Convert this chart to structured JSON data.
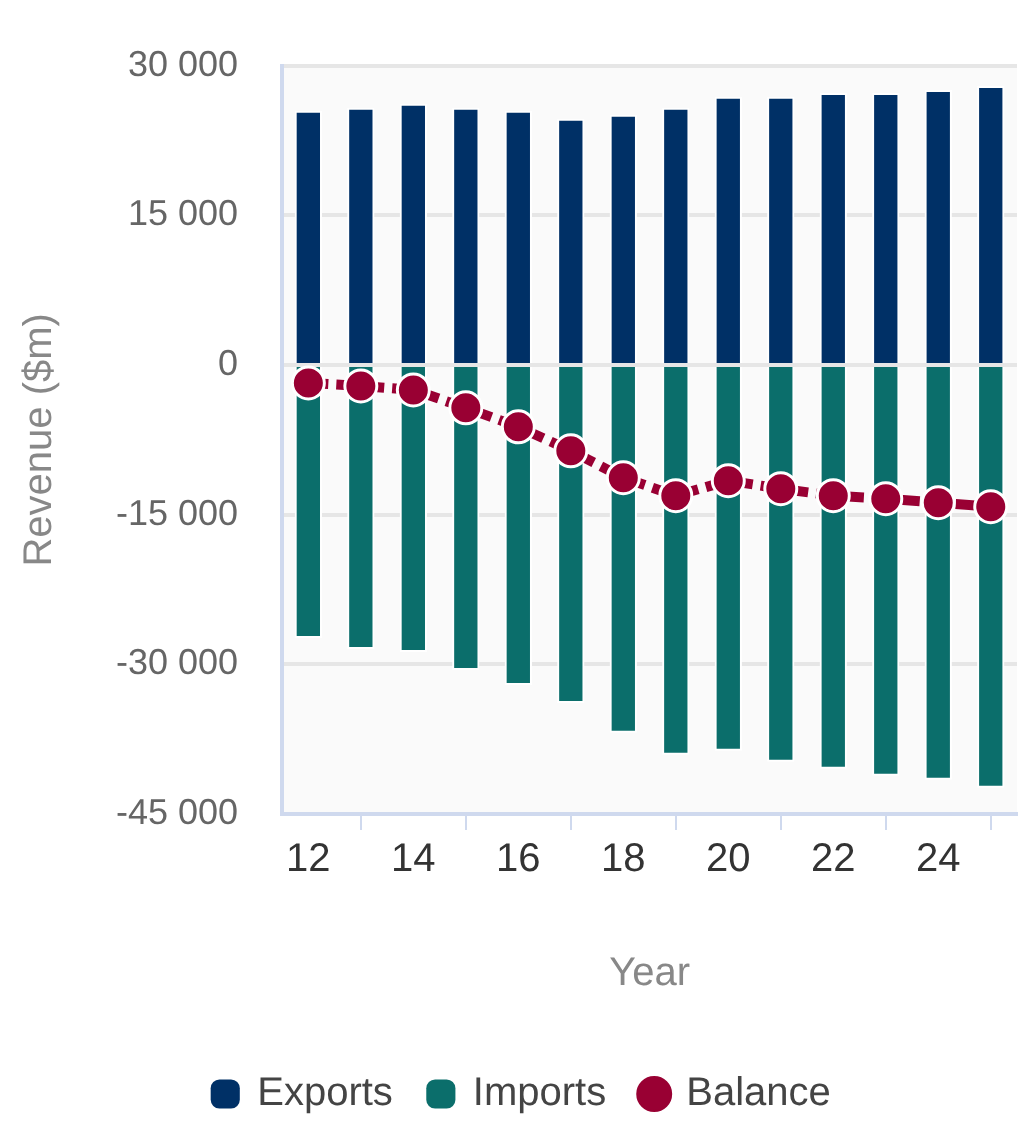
{
  "chart_data": {
    "type": "bar",
    "xlabel": "Year",
    "ylabel": "Revenue ($m)",
    "stacked": true,
    "grid": "y",
    "legend": "bottom",
    "marker": "circle",
    "line_style": "dashed",
    "x": [
      12,
      13,
      14,
      15,
      16,
      17,
      18,
      19,
      20,
      21,
      22,
      23,
      24,
      25
    ],
    "xlim": [
      11.5,
      25.5
    ],
    "xticks": [
      12,
      14,
      16,
      18,
      20,
      22,
      24
    ],
    "ylim": [
      -45000,
      30000
    ],
    "yticks": [
      {
        "value": -45000,
        "label": "-45 000"
      },
      {
        "value": -30000,
        "label": "-30 000"
      },
      {
        "value": -15000,
        "label": "-15 000"
      },
      0,
      {
        "value": 15000,
        "label": "15 000"
      },
      {
        "value": 30000,
        "label": "30 000"
      }
    ],
    "series": [
      {
        "name": "Exports",
        "color": "#003066",
        "values": [
          25400,
          25700,
          26100,
          25700,
          25400,
          24600,
          25000,
          25700,
          26800,
          26800,
          27200,
          27200,
          27500,
          27900
        ]
      },
      {
        "name": "Imports",
        "color": "#0b6e6b",
        "values": [
          -27300,
          -28400,
          -28700,
          -30500,
          -32000,
          -33800,
          -36800,
          -39000,
          -38600,
          -39700,
          -40400,
          -41100,
          -41500,
          -42300
        ]
      },
      {
        "name": "Balance",
        "type": "line",
        "color": "#990033",
        "values": [
          -1800,
          -2100,
          -2500,
          -4300,
          -6200,
          -8600,
          -11300,
          -13100,
          -11600,
          -12400,
          -13100,
          -13400,
          -13800,
          -14200
        ]
      }
    ]
  }
}
